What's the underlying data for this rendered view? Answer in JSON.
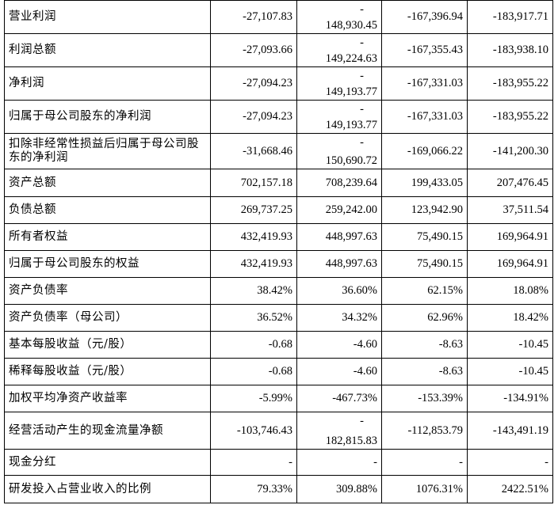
{
  "rows": [
    {
      "label": "营业利润",
      "values": [
        "-27,107.83",
        {
          "dash": "-",
          "value": "148,930.45"
        },
        "-167,396.94",
        "-183,917.71"
      ],
      "height": 42
    },
    {
      "label": "利润总额",
      "values": [
        "-27,093.66",
        {
          "dash": "-",
          "value": "149,224.63"
        },
        "-167,355.43",
        "-183,938.10"
      ],
      "height": 42
    },
    {
      "label": "净利润",
      "values": [
        "-27,094.23",
        {
          "dash": "-",
          "value": "149,193.77"
        },
        "-167,331.03",
        "-183,955.22"
      ],
      "height": 42
    },
    {
      "label": "归属于母公司股东的净利润",
      "values": [
        "-27,094.23",
        {
          "dash": "-",
          "value": "149,193.77"
        },
        "-167,331.03",
        "-183,955.22"
      ],
      "height": 42
    },
    {
      "label": "扣除非经常性损益后归属于母公司股东的净利润",
      "values": [
        "-31,668.46",
        {
          "dash": "-",
          "value": "150,690.72"
        },
        "-169,066.22",
        "-141,200.30"
      ],
      "height": 45
    },
    {
      "label": "资产总额",
      "values": [
        "702,157.18",
        "708,239.64",
        "199,433.05",
        "207,476.45"
      ],
      "height": 35
    },
    {
      "label": "负债总额",
      "values": [
        "269,737.25",
        "259,242.00",
        "123,942.90",
        "37,511.54"
      ],
      "height": 34
    },
    {
      "label": "所有者权益",
      "values": [
        "432,419.93",
        "448,997.63",
        "75,490.15",
        "169,964.91"
      ],
      "height": 34
    },
    {
      "label": "归属于母公司股东的权益",
      "values": [
        "432,419.93",
        "448,997.63",
        "75,490.15",
        "169,964.91"
      ],
      "height": 34
    },
    {
      "label": "资产负债率",
      "values": [
        "38.42%",
        "36.60%",
        "62.15%",
        "18.08%"
      ],
      "height": 34
    },
    {
      "label": "资产负债率（母公司）",
      "values": [
        "36.52%",
        "34.32%",
        "62.96%",
        "18.42%"
      ],
      "height": 34
    },
    {
      "label": "基本每股收益（元/股）",
      "values": [
        "-0.68",
        "-4.60",
        "-8.63",
        "-10.45"
      ],
      "height": 34
    },
    {
      "label": "稀释每股收益（元/股）",
      "values": [
        "-0.68",
        "-4.60",
        "-8.63",
        "-10.45"
      ],
      "height": 34
    },
    {
      "label": "加权平均净资产收益率",
      "values": [
        "-5.99%",
        "-467.73%",
        "-153.39%",
        "-134.91%"
      ],
      "height": 34
    },
    {
      "label": "经营活动产生的现金流量净额",
      "values": [
        "-103,746.43",
        {
          "dash": "-",
          "value": "182,815.83"
        },
        "-112,853.79",
        "-143,491.19"
      ],
      "height": 47
    },
    {
      "label": "现金分红",
      "values": [
        "-",
        "-",
        "-",
        "-"
      ],
      "height": 33
    },
    {
      "label": "研发投入占营业收入的比例",
      "values": [
        "79.33%",
        "309.88%",
        "1076.31%",
        "2422.51%"
      ],
      "height": 35
    }
  ]
}
